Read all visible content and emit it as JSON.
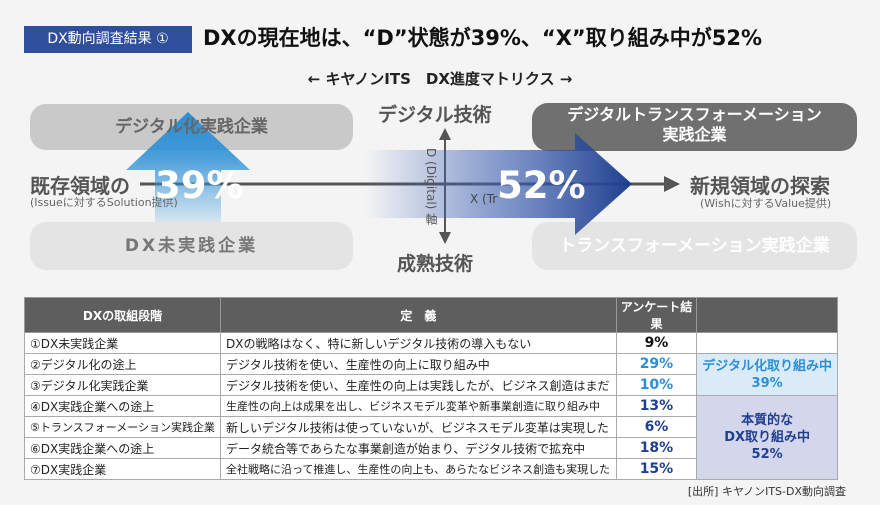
{
  "header": {
    "tag": "DX動向調査結果 ①",
    "headline": "DXの現在地は、“D”状態が39%、“X”取り組み中が52%"
  },
  "matrix": {
    "title": "キヤノンITS　DX進度マトリクス",
    "quadrants": {
      "top_left": "デジタル化実践企業",
      "bottom_left": "DX未実践企業",
      "top_right": "デジタルトランスフォーメーション\n実践企業",
      "bottom_right": "トランスフォーメーション実践企業"
    },
    "axis": {
      "top": "デジタル技術",
      "bottom": "成熟技術",
      "left": "既存領域の",
      "left_sub": "(Issueに対するSolution提供)",
      "right": "新規領域の探索",
      "right_sub": "(Wishに対するValue提供)",
      "vertical": "D (Digital) 軸",
      "horizontal": "X (Tr"
    },
    "d_percent": "39%",
    "x_percent": "52%"
  },
  "table": {
    "headers": [
      "DXの取組段階",
      "定　義",
      "アンケート結果",
      ""
    ],
    "rows": [
      {
        "stage": "①DX未実践企業",
        "definition": "DXの戦略はなく、特に新しいデジタル技術の導入もない",
        "result": "9%"
      },
      {
        "stage": "②デジタル化の途上",
        "definition": "デジタル技術を使い、生産性の向上に取り組み中",
        "result": "29%"
      },
      {
        "stage": "③デジタル化実践企業",
        "definition": "デジタル技術を使い、生産性の向上は実践したが、ビジネス創造はまだ",
        "result": "10%"
      },
      {
        "stage": "④DX実践企業への途上",
        "definition": "生産性の向上は成果を出し、ビジネスモデル変革や新事業創造に取り組み中",
        "result": "13%"
      },
      {
        "stage": "⑤トランスフォーメーション実践企業",
        "definition": "新しいデジタル技術は使っていないが、ビジネスモデル変革は実現した",
        "result": "6%"
      },
      {
        "stage": "⑥DX実践企業への途上",
        "definition": "データ統合等であらたな事業創造が始まり、デジタル技術で拡充中",
        "result": "18%"
      },
      {
        "stage": "⑦DX実践企業",
        "definition": "全社戦略に沿って推進し、生産性の向上も、あらたなビジネス創造も実現した",
        "result": "15%"
      }
    ],
    "group_digital_line1": "デジタル化取り組み中",
    "group_digital_line2": "39%",
    "group_dx_line1": "本質的な",
    "group_dx_line2": "DX取り組み中",
    "group_dx_line3": "52%"
  },
  "source": "[出所] キヤノンITS-DX動向調査",
  "colors": {
    "tag_bg": "#2f4f9c",
    "light_blue": "#2b8fd6",
    "dark_blue": "#1f3f8f",
    "group_digital_bg": "#dbeaf7",
    "group_dx_bg": "#d4d6ec"
  }
}
